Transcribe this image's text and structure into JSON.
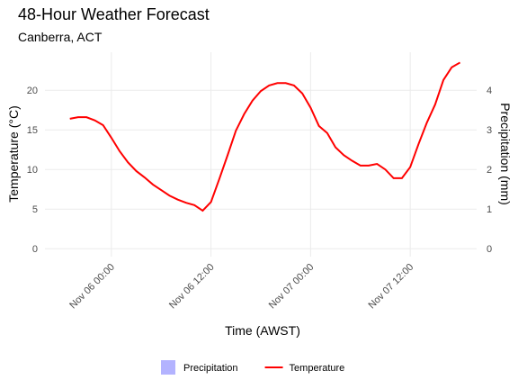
{
  "chart_data": {
    "type": "line",
    "title": "48-Hour Weather Forecast",
    "subtitle": "Canberra, ACT",
    "x_label": "Time (AWST)",
    "y_label": "Temperature (°C)",
    "y2_label": "Precipitation (mm)",
    "x": [
      "Nov 05 19:00",
      "Nov 05 20:00",
      "Nov 05 21:00",
      "Nov 05 22:00",
      "Nov 05 23:00",
      "Nov 06 00:00",
      "Nov 06 01:00",
      "Nov 06 02:00",
      "Nov 06 03:00",
      "Nov 06 04:00",
      "Nov 06 05:00",
      "Nov 06 06:00",
      "Nov 06 07:00",
      "Nov 06 08:00",
      "Nov 06 09:00",
      "Nov 06 10:00",
      "Nov 06 11:00",
      "Nov 06 12:00",
      "Nov 06 13:00",
      "Nov 06 14:00",
      "Nov 06 15:00",
      "Nov 06 16:00",
      "Nov 06 17:00",
      "Nov 06 18:00",
      "Nov 06 19:00",
      "Nov 06 20:00",
      "Nov 06 21:00",
      "Nov 06 22:00",
      "Nov 06 23:00",
      "Nov 07 00:00",
      "Nov 07 01:00",
      "Nov 07 02:00",
      "Nov 07 03:00",
      "Nov 07 04:00",
      "Nov 07 05:00",
      "Nov 07 06:00",
      "Nov 07 07:00",
      "Nov 07 08:00",
      "Nov 07 09:00",
      "Nov 07 10:00",
      "Nov 07 11:00",
      "Nov 07 12:00",
      "Nov 07 13:00",
      "Nov 07 14:00",
      "Nov 07 15:00",
      "Nov 07 16:00",
      "Nov 07 17:00",
      "Nov 07 18:00"
    ],
    "series": [
      {
        "name": "Precipitation",
        "color": "#b3b3ff",
        "axis": "y2",
        "kind": "bar",
        "values": [
          0,
          0,
          0,
          0,
          0,
          0,
          0,
          0,
          0,
          0,
          0,
          0,
          0,
          0,
          0,
          0,
          0,
          0,
          0,
          0,
          0,
          0,
          0,
          0,
          0,
          0,
          0,
          0,
          0,
          0,
          0,
          0,
          0,
          0,
          0,
          0,
          0,
          0,
          0,
          0,
          0,
          0,
          0,
          0,
          0,
          0,
          0,
          0
        ]
      },
      {
        "name": "Temperature",
        "color": "#ff0000",
        "kind": "line",
        "values": [
          16.4,
          16.6,
          16.6,
          16.2,
          15.6,
          14.0,
          12.3,
          10.9,
          9.8,
          9.0,
          8.1,
          7.4,
          6.7,
          6.2,
          5.8,
          5.5,
          4.8,
          5.9,
          8.8,
          11.8,
          14.9,
          17.0,
          18.7,
          19.9,
          20.6,
          20.9,
          20.9,
          20.6,
          19.6,
          17.8,
          15.5,
          14.6,
          12.8,
          11.8,
          11.1,
          10.5,
          10.5,
          10.7,
          10.0,
          8.9,
          8.9,
          10.3,
          13.2,
          15.9,
          18.2,
          21.3,
          22.9,
          23.5
        ]
      }
    ],
    "xlim": [
      "Nov 05 16:00",
      "Nov 07 20:00"
    ],
    "xticks": [
      "Nov 06 00:00",
      "Nov 06 12:00",
      "Nov 07 00:00",
      "Nov 07 12:00"
    ],
    "ylim": [
      -1,
      24.8
    ],
    "yticks": [
      0,
      5,
      10,
      15,
      20
    ],
    "y2lim": [
      -0.2,
      4.96
    ],
    "y2ticks": [
      0,
      1,
      2,
      3,
      4
    ],
    "grid": true,
    "legend": "bottom"
  }
}
